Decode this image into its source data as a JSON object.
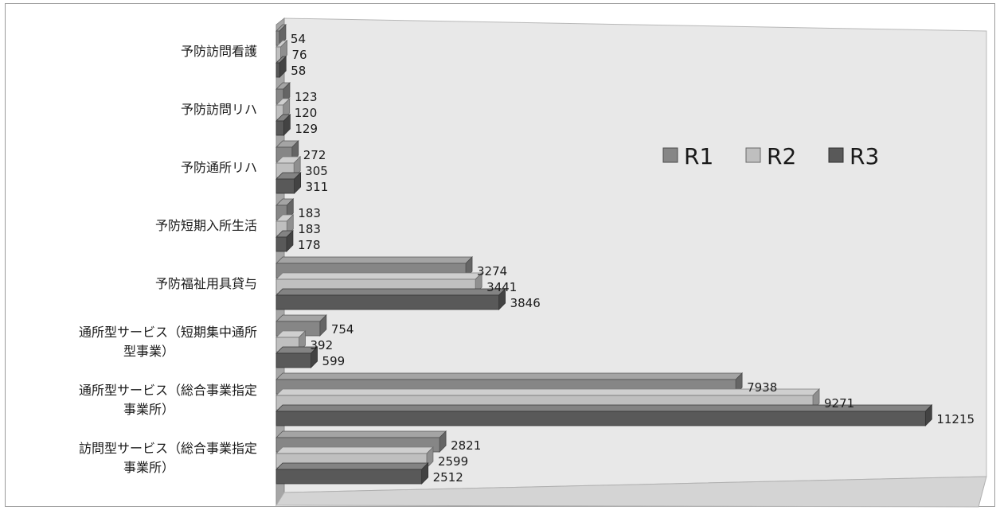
{
  "chart_data": {
    "type": "bar",
    "orientation": "horizontal",
    "three_d": true,
    "categories": [
      "予防訪問看護",
      "予防訪問リハ",
      "予防通所リハ",
      "予防短期入所生活",
      "予防福祉用具貸与",
      "通所型サービス（短期集中通所型事業）",
      "通所型サービス（総合事業指定事業所）",
      "訪問型サービス（総合事業指定事業所）"
    ],
    "category_label_lines": [
      [
        "予防訪問看護"
      ],
      [
        "予防訪問リハ"
      ],
      [
        "予防通所リハ"
      ],
      [
        "予防短期入所生活"
      ],
      [
        "予防福祉用具貸与"
      ],
      [
        "通所型サービス（短期集中通所",
        "型事業）"
      ],
      [
        "通所型サービス（総合事業指定",
        "事業所）"
      ],
      [
        "訪問型サービス（総合事業指定",
        "事業所）"
      ]
    ],
    "series": [
      {
        "name": "R1",
        "values": [
          54,
          123,
          272,
          183,
          3274,
          754,
          7938,
          2821
        ]
      },
      {
        "name": "R2",
        "values": [
          76,
          120,
          305,
          183,
          3441,
          392,
          9271,
          2599
        ]
      },
      {
        "name": "R3",
        "values": [
          58,
          129,
          311,
          178,
          3846,
          599,
          11215,
          2512
        ]
      }
    ],
    "xlim": [
      0,
      12000
    ],
    "grid": false,
    "legend_position": "right",
    "colors": {
      "R1": "#868686",
      "R2": "#bfbfbf",
      "R3": "#595959"
    }
  }
}
